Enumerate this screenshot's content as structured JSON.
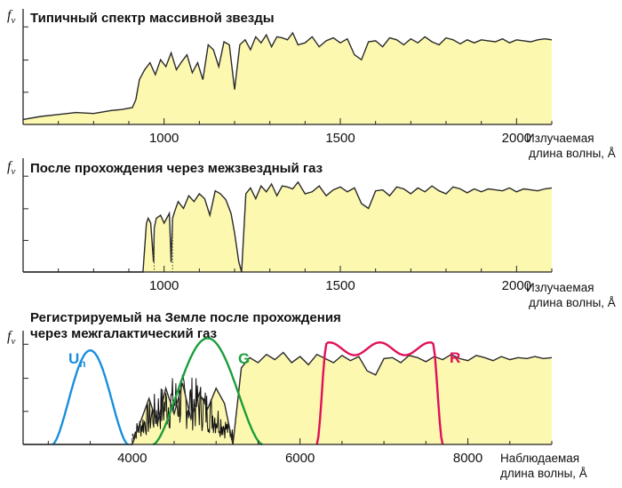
{
  "colors": {
    "fill": "#fcf8b0",
    "line": "#2a2a2a",
    "filter_U": "#1a8fdc",
    "filter_G": "#1a9e3a",
    "filter_R": "#e0105a"
  },
  "chart_data": [
    {
      "type": "area",
      "title": "Типичный спектр массивной звезды",
      "ylabel": "f",
      "ylabel_sub": "ν",
      "xlabel_line1": "Излучаемая",
      "xlabel_line2": "длина волны, Å",
      "xlim": [
        600,
        2100
      ],
      "ylim": [
        0,
        1
      ],
      "tick_values": [
        1000,
        1500,
        2000
      ],
      "tick_labels": [
        "1000",
        "1500",
        "2000"
      ],
      "x": [
        600,
        650,
        700,
        750,
        800,
        850,
        880,
        910,
        920,
        930,
        945,
        960,
        975,
        990,
        1005,
        1020,
        1035,
        1050,
        1065,
        1080,
        1095,
        1110,
        1125,
        1140,
        1155,
        1170,
        1185,
        1200,
        1215,
        1230,
        1245,
        1260,
        1275,
        1290,
        1305,
        1320,
        1335,
        1350,
        1365,
        1380,
        1400,
        1420,
        1440,
        1460,
        1480,
        1500,
        1520,
        1540,
        1560,
        1580,
        1600,
        1620,
        1640,
        1660,
        1680,
        1700,
        1720,
        1740,
        1760,
        1780,
        1800,
        1820,
        1840,
        1860,
        1880,
        1900,
        1920,
        1940,
        1960,
        1980,
        2000,
        2020,
        2040,
        2060,
        2080,
        2100
      ],
      "y": [
        0.05,
        0.08,
        0.1,
        0.12,
        0.11,
        0.14,
        0.15,
        0.17,
        0.25,
        0.45,
        0.55,
        0.62,
        0.5,
        0.65,
        0.58,
        0.72,
        0.55,
        0.63,
        0.7,
        0.52,
        0.62,
        0.45,
        0.8,
        0.75,
        0.58,
        0.83,
        0.8,
        0.35,
        0.8,
        0.85,
        0.75,
        0.88,
        0.82,
        0.9,
        0.78,
        0.88,
        0.87,
        0.85,
        0.92,
        0.8,
        0.82,
        0.88,
        0.78,
        0.84,
        0.87,
        0.82,
        0.86,
        0.7,
        0.65,
        0.83,
        0.84,
        0.78,
        0.87,
        0.85,
        0.8,
        0.86,
        0.82,
        0.88,
        0.83,
        0.8,
        0.87,
        0.85,
        0.81,
        0.85,
        0.82,
        0.85,
        0.84,
        0.83,
        0.86,
        0.82,
        0.85,
        0.84,
        0.83,
        0.85,
        0.86,
        0.85
      ]
    },
    {
      "type": "area",
      "title": "После прохождения через межзвездный газ",
      "ylabel": "f",
      "ylabel_sub": "ν",
      "xlabel_line1": "Излучаемая",
      "xlabel_line2": "длина волны, Å",
      "xlim": [
        600,
        2100
      ],
      "ylim": [
        0,
        1
      ],
      "tick_values": [
        1000,
        1500,
        2000
      ],
      "tick_labels": [
        "1000",
        "1500",
        "2000"
      ],
      "x": [
        600,
        700,
        800,
        900,
        940,
        950,
        955,
        962,
        970,
        972,
        978,
        990,
        1000,
        1015,
        1020,
        1024,
        1030,
        1040,
        1055,
        1070,
        1085,
        1100,
        1115,
        1130,
        1145,
        1160,
        1175,
        1190,
        1200,
        1212,
        1220,
        1232,
        1245,
        1260,
        1275,
        1290,
        1305,
        1320,
        1335,
        1350,
        1365,
        1380,
        1400,
        1420,
        1440,
        1460,
        1480,
        1500,
        1520,
        1540,
        1560,
        1580,
        1600,
        1620,
        1640,
        1660,
        1680,
        1700,
        1720,
        1740,
        1760,
        1780,
        1800,
        1820,
        1840,
        1860,
        1880,
        1900,
        1920,
        1940,
        1960,
        1980,
        2000,
        2020,
        2040,
        2060,
        2080,
        2100
      ],
      "y": [
        0,
        0,
        0,
        0,
        0,
        0.5,
        0.55,
        0.5,
        0.1,
        0.45,
        0.55,
        0.58,
        0.5,
        0.6,
        0.1,
        0.55,
        0.62,
        0.72,
        0.65,
        0.78,
        0.72,
        0.8,
        0.75,
        0.58,
        0.83,
        0.8,
        0.74,
        0.6,
        0.4,
        0.1,
        0.0,
        0.8,
        0.86,
        0.75,
        0.88,
        0.82,
        0.9,
        0.78,
        0.88,
        0.87,
        0.85,
        0.92,
        0.8,
        0.82,
        0.88,
        0.78,
        0.84,
        0.87,
        0.82,
        0.86,
        0.7,
        0.65,
        0.83,
        0.84,
        0.78,
        0.87,
        0.85,
        0.8,
        0.86,
        0.82,
        0.88,
        0.83,
        0.8,
        0.87,
        0.85,
        0.81,
        0.85,
        0.82,
        0.85,
        0.84,
        0.83,
        0.86,
        0.82,
        0.85,
        0.84,
        0.83,
        0.85,
        0.86
      ]
    },
    {
      "type": "area",
      "title_line1": "Регистрируемый на Земле после прохождения",
      "title_line2": "через межгалактический газ",
      "ylabel": "f",
      "ylabel_sub": "ν",
      "xlabel_line1": "Наблюдаемая",
      "xlabel_line2": "длина волны, Å",
      "xlim": [
        2700,
        9000
      ],
      "ylim": [
        0,
        1
      ],
      "tick_values": [
        4000,
        6000,
        8000
      ],
      "tick_labels": [
        "4000",
        "6000",
        "8000"
      ],
      "x": [
        2700,
        3500,
        4000,
        4200,
        4300,
        4400,
        4500,
        4600,
        4700,
        4800,
        4900,
        5000,
        5100,
        5200,
        5300,
        5400,
        5500,
        5600,
        5700,
        5800,
        5900,
        6000,
        6100,
        6200,
        6300,
        6400,
        6500,
        6600,
        6700,
        6800,
        6900,
        7000,
        7100,
        7200,
        7300,
        7400,
        7500,
        7600,
        7700,
        7800,
        7900,
        8000,
        8100,
        8200,
        8300,
        8400,
        8500,
        8600,
        8700,
        8800,
        8900,
        9000
      ],
      "y": [
        0,
        0,
        0,
        0.45,
        0.2,
        0.55,
        0.3,
        0.6,
        0.25,
        0.5,
        0.35,
        0.55,
        0.4,
        0.0,
        0.75,
        0.85,
        0.8,
        0.88,
        0.83,
        0.9,
        0.8,
        0.86,
        0.78,
        0.88,
        0.84,
        0.8,
        0.87,
        0.82,
        0.86,
        0.72,
        0.68,
        0.84,
        0.85,
        0.8,
        0.87,
        0.85,
        0.81,
        0.86,
        0.83,
        0.88,
        0.84,
        0.82,
        0.87,
        0.85,
        0.82,
        0.86,
        0.83,
        0.85,
        0.84,
        0.86,
        0.84,
        0.85
      ],
      "forest_x": [
        4000,
        5200
      ],
      "filters": [
        {
          "name": "U",
          "name_sub": "n",
          "color": "#1a8fdc",
          "center": 3500,
          "width": 900,
          "peak": 1.0
        },
        {
          "name": "G",
          "color": "#1a9e3a",
          "center": 4900,
          "width": 1300,
          "peak": 1.13
        },
        {
          "name": "R",
          "color": "#e0105a",
          "center": 6950,
          "width": 1500,
          "peak": 1.13
        }
      ]
    }
  ]
}
